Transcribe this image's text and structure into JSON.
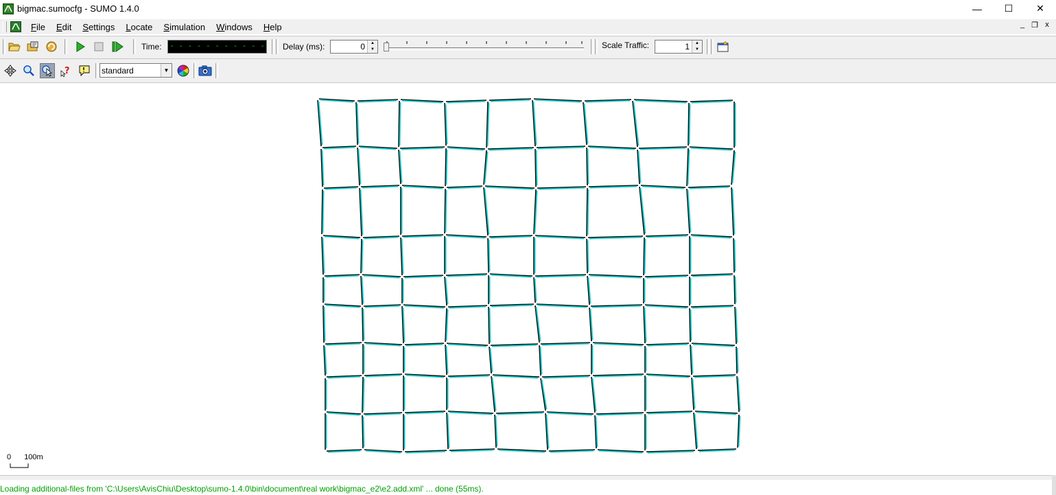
{
  "window": {
    "title": "bigmac.sumocfg - SUMO 1.4.0",
    "minimize": "—",
    "maximize": "☐",
    "close": "✕"
  },
  "menu": {
    "items": [
      "File",
      "Edit",
      "Settings",
      "Locate",
      "Simulation",
      "Windows",
      "Help"
    ],
    "mdi": [
      "_",
      "❐",
      "x"
    ]
  },
  "toolbar": {
    "time_label": "Time:",
    "time_value": "- - - - - - - - - - - - - - - - - -",
    "delay_label": "Delay (ms):",
    "delay_value": "0",
    "delay_slider_position": 0,
    "scale_label": "Scale Traffic:",
    "scale_value": "1"
  },
  "view": {
    "scheme": "standard",
    "scale_zero": "0",
    "scale_length": "100m"
  },
  "status": {
    "message": "Loading additional-files from 'C:\\Users\\AvisChiu\\Desktop\\sumo-1.4.0\\bin\\document\\real work\\bigmac_e2\\e2.add.xml' ... done (55ms)."
  },
  "colors": {
    "road": "#000000",
    "detector": "#1ec8c8",
    "status_text": "#00a000",
    "time_display_bg": "#000000",
    "time_display_fg": "#00c000"
  },
  "icons": {
    "open": "folder-open-icon",
    "open_network": "open-network-icon",
    "reload": "reload-icon",
    "run": "play-icon",
    "stop": "stop-icon",
    "step": "step-icon",
    "recenter": "recenter-icon",
    "zoom": "zoom-icon",
    "locate": "locate-icon",
    "query": "query-icon",
    "tooltip": "tooltip-icon",
    "color_wheel": "color-wheel-icon",
    "screenshot": "camera-icon",
    "new_view": "new-view-icon"
  }
}
